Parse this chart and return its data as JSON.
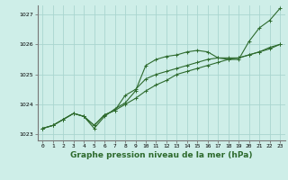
{
  "x": [
    0,
    1,
    2,
    3,
    4,
    5,
    6,
    7,
    8,
    9,
    10,
    11,
    12,
    13,
    14,
    15,
    16,
    17,
    18,
    19,
    20,
    21,
    22,
    23
  ],
  "line1": [
    1023.2,
    1023.3,
    1023.5,
    1023.7,
    1023.6,
    1023.2,
    1023.6,
    1023.85,
    1024.05,
    1024.45,
    1025.3,
    1025.5,
    1025.6,
    1025.65,
    1025.75,
    1025.8,
    1025.75,
    1025.55,
    1025.5,
    1025.5,
    1026.1,
    1026.55,
    1026.8,
    1027.2
  ],
  "line2": [
    1023.2,
    1023.3,
    1023.5,
    1023.7,
    1023.6,
    1023.3,
    1023.65,
    1023.8,
    1024.3,
    1024.5,
    1024.85,
    1025.0,
    1025.1,
    1025.2,
    1025.3,
    1025.4,
    1025.5,
    1025.55,
    1025.55,
    1025.55,
    1025.65,
    1025.75,
    1025.9,
    1026.0
  ],
  "line3": [
    1023.2,
    1023.3,
    1023.5,
    1023.7,
    1023.6,
    1023.3,
    1023.65,
    1023.8,
    1024.0,
    1024.2,
    1024.45,
    1024.65,
    1024.8,
    1025.0,
    1025.1,
    1025.2,
    1025.3,
    1025.4,
    1025.5,
    1025.55,
    1025.65,
    1025.75,
    1025.85,
    1026.0
  ],
  "line_color": "#2d6a2d",
  "bg_color": "#ceeee8",
  "grid_color": "#aad5cf",
  "ylim": [
    1022.8,
    1027.3
  ],
  "xlim": [
    -0.5,
    23.5
  ],
  "yticks": [
    1023,
    1024,
    1025,
    1026,
    1027
  ],
  "xticks": [
    0,
    1,
    2,
    3,
    4,
    5,
    6,
    7,
    8,
    9,
    10,
    11,
    12,
    13,
    14,
    15,
    16,
    17,
    18,
    19,
    20,
    21,
    22,
    23
  ],
  "xlabel": "Graphe pression niveau de la mer (hPa)",
  "marker": "+",
  "markersize": 3,
  "linewidth": 0.8,
  "tick_fontsize": 4.5,
  "label_fontsize": 6.5
}
